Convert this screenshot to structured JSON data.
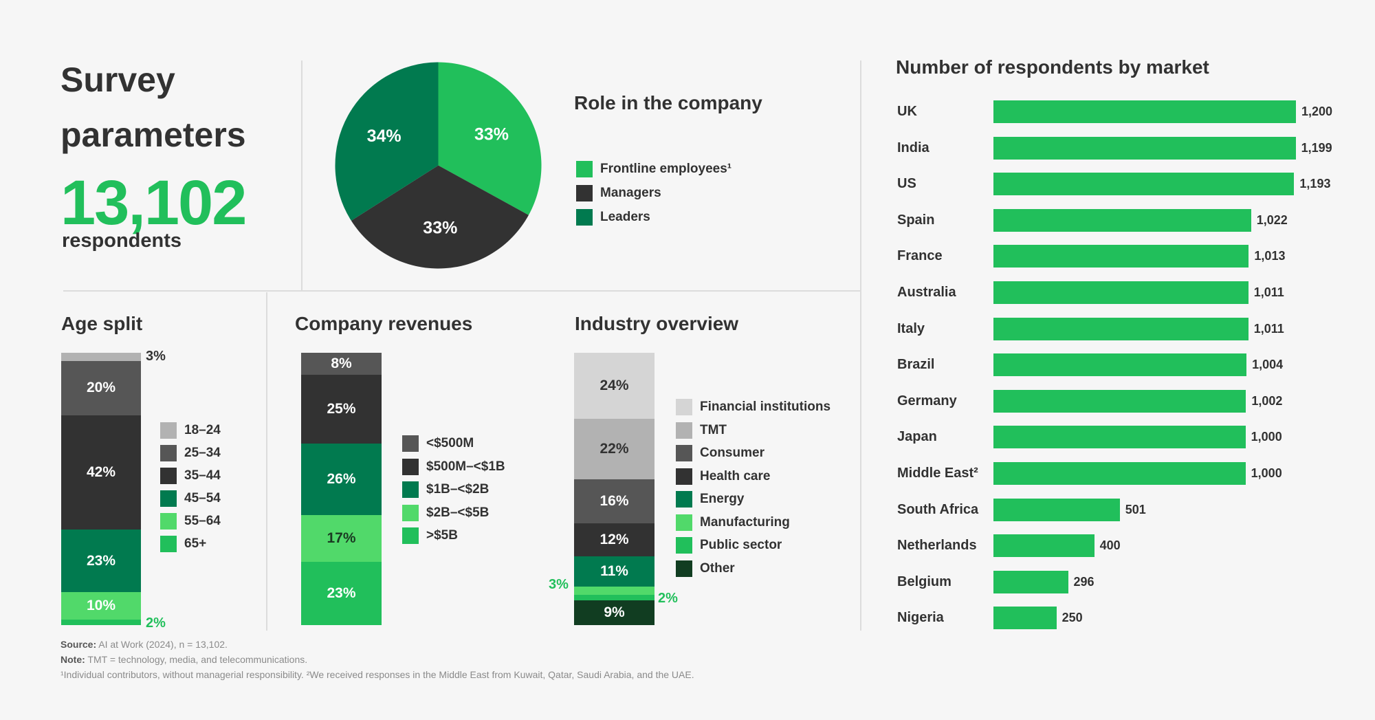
{
  "header": {
    "title": "Survey parameters",
    "respondents_number": "13,102",
    "respondents_label": "respondents"
  },
  "colors": {
    "green": "#21bf5b",
    "dark_green": "#017a4f",
    "darkest_green": "#113d21",
    "light_green": "#51d96a",
    "dark_gray": "#323232",
    "mid_gray": "#565656",
    "light_gray": "#b2b2b2",
    "pale_gray": "#d5d5d5"
  },
  "footnotes": {
    "source_label": "Source:",
    "source_text": "AI at Work (2024), n = 13,102.",
    "note_label": "Note:",
    "note_text": "TMT = technology, media, and telecommunications.",
    "footnote_text": "¹Individual contributors, without managerial responsibility. ²We received responses in the Middle East from Kuwait, Qatar, Saudi Arabia, and the UAE."
  },
  "chart_data": [
    {
      "id": "role",
      "type": "pie",
      "title": "Role in the company",
      "slices": [
        {
          "label": "Frontline employees¹",
          "value": 33,
          "display": "33%",
          "color": "#21bf5b"
        },
        {
          "label": "Managers",
          "value": 33,
          "display": "33%",
          "color": "#323232"
        },
        {
          "label": "Leaders",
          "value": 34,
          "display": "34%",
          "color": "#017a4f"
        }
      ]
    },
    {
      "id": "age",
      "type": "bar",
      "stacked": true,
      "title": "Age split",
      "segments": [
        {
          "label": "18–24",
          "value": 3,
          "display": "3%",
          "color": "#b2b2b2"
        },
        {
          "label": "25–34",
          "value": 20,
          "display": "20%",
          "color": "#565656"
        },
        {
          "label": "35–44",
          "value": 42,
          "display": "42%",
          "color": "#323232"
        },
        {
          "label": "45–54",
          "value": 23,
          "display": "23%",
          "color": "#017a4f"
        },
        {
          "label": "55–64",
          "value": 10,
          "display": "10%",
          "color": "#51d96a"
        },
        {
          "label": "65+",
          "value": 2,
          "display": "2%",
          "color": "#21bf5b"
        }
      ]
    },
    {
      "id": "revenue",
      "type": "bar",
      "stacked": true,
      "title": "Company revenues",
      "segments": [
        {
          "label": "<$500M",
          "value": 8,
          "display": "8%",
          "color": "#565656"
        },
        {
          "label": "$500M–<$1B",
          "value": 25,
          "display": "25%",
          "color": "#323232"
        },
        {
          "label": "$1B–<$2B",
          "value": 26,
          "display": "26%",
          "color": "#017a4f"
        },
        {
          "label": "$2B–<$5B",
          "value": 17,
          "display": "17%",
          "color": "#51d96a"
        },
        {
          "label": ">$5B",
          "value": 23,
          "display": "23%",
          "color": "#21bf5b"
        }
      ]
    },
    {
      "id": "industry",
      "type": "bar",
      "stacked": true,
      "title": "Industry overview",
      "segments": [
        {
          "label": "Financial institutions",
          "value": 24,
          "display": "24%",
          "color": "#d5d5d5"
        },
        {
          "label": "TMT",
          "value": 22,
          "display": "22%",
          "color": "#b2b2b2"
        },
        {
          "label": "Consumer",
          "value": 16,
          "display": "16%",
          "color": "#565656"
        },
        {
          "label": "Health care",
          "value": 12,
          "display": "12%",
          "color": "#323232"
        },
        {
          "label": "Energy",
          "value": 11,
          "display": "11%",
          "color": "#017a4f"
        },
        {
          "label": "Manufacturing",
          "value": 3,
          "display": "3%",
          "color": "#51d96a"
        },
        {
          "label": "Public sector",
          "value": 2,
          "display": "2%",
          "color": "#21bf5b"
        },
        {
          "label": "Other",
          "value": 9,
          "display": "9%",
          "color": "#113d21"
        }
      ]
    },
    {
      "id": "markets",
      "type": "bar",
      "orientation": "horizontal",
      "title": "Number of respondents by market",
      "xlim": [
        0,
        1200
      ],
      "categories": [
        "UK",
        "India",
        "US",
        "Spain",
        "France",
        "Australia",
        "Italy",
        "Brazil",
        "Germany",
        "Japan",
        "Middle East²",
        "South Africa",
        "Netherlands",
        "Belgium",
        "Nigeria"
      ],
      "values": [
        1200,
        1199,
        1193,
        1022,
        1013,
        1011,
        1011,
        1004,
        1002,
        1000,
        1000,
        501,
        400,
        296,
        250
      ],
      "labels": [
        "1,200",
        "1,199",
        "1,193",
        "1,022",
        "1,013",
        "1,011",
        "1,011",
        "1,004",
        "1,002",
        "1,000",
        "1,000",
        "501",
        "400",
        "296",
        "250"
      ]
    }
  ]
}
